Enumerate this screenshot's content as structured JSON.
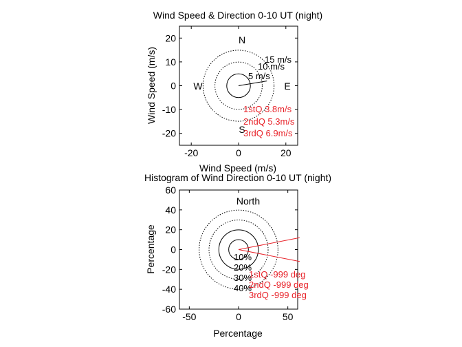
{
  "colors": {
    "axes": "#000000",
    "accent": "#e8232a"
  },
  "chart_data": [
    {
      "type": "polar-scatter",
      "title": "Wind Speed & Direction 0-10 UT (night)",
      "xlabel": "Wind Speed (m/s)",
      "ylabel": "Wind Speed (m/s)",
      "xlim": [
        -25,
        25
      ],
      "ylim": [
        -25,
        25
      ],
      "xticks": [
        -20,
        0,
        20
      ],
      "yticks": [
        20,
        10,
        0,
        -10,
        -20
      ],
      "rings": [
        {
          "r": 5,
          "label": "5 m/s",
          "style": "solid"
        },
        {
          "r": 10,
          "label": "10 m/s",
          "style": "dotted"
        },
        {
          "r": 15,
          "label": "15 m/s",
          "style": "dotted"
        }
      ],
      "compass": {
        "north": "N",
        "south": "S",
        "east": "E",
        "west": "W"
      },
      "quartiles": [
        {
          "label": "1stQ 3.8m/s",
          "value": 3.8
        },
        {
          "label": "2ndQ 5.3m/s",
          "value": 5.3
        },
        {
          "label": "3rdQ 6.9m/s",
          "value": 6.9
        }
      ],
      "vector": {
        "x": 12.0,
        "y": 2.0
      }
    },
    {
      "type": "polar-histogram",
      "title": "Histogram of Wind Direction 0-10 UT (night)",
      "xlabel": "Percentage",
      "ylabel": "Percentage",
      "xlim": [
        -60,
        60
      ],
      "ylim": [
        -60,
        60
      ],
      "xticks": [
        -50,
        0,
        50
      ],
      "yticks": [
        60,
        40,
        20,
        0,
        -20,
        -40,
        -60
      ],
      "rings": [
        {
          "r": 10,
          "label": "10%",
          "style": "solid"
        },
        {
          "r": 20,
          "label": "20%",
          "style": "solid"
        },
        {
          "r": 30,
          "label": "30%",
          "style": "dotted"
        },
        {
          "r": 40,
          "label": "40%",
          "style": "dotted"
        }
      ],
      "north_label": "North",
      "quartiles": [
        {
          "label": "1stQ -999 deg",
          "value": -999
        },
        {
          "label": "2ndQ -999 deg",
          "value": -999
        },
        {
          "label": "3rdQ -999 deg",
          "value": -999
        }
      ],
      "sector_lines": [
        {
          "x": 62,
          "y": 12
        },
        {
          "x": 62,
          "y": -12
        }
      ]
    }
  ]
}
